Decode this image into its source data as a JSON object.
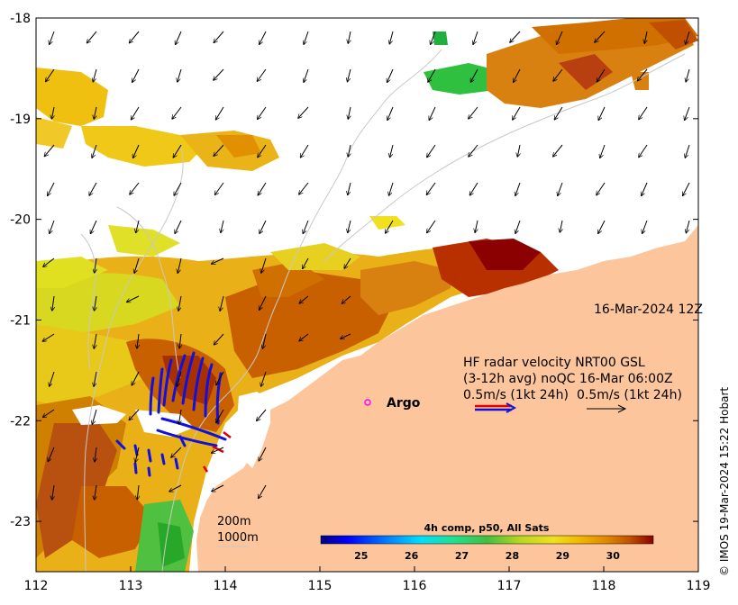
{
  "map": {
    "lon_ticks": [
      "112",
      "113",
      "114",
      "115",
      "116",
      "117",
      "118",
      "119"
    ],
    "lat_ticks": [
      "-18",
      "-19",
      "-20",
      "-21",
      "-22",
      "-23"
    ],
    "lon_range": [
      112,
      119
    ],
    "lat_range": [
      -23.5,
      -18
    ]
  },
  "annotations": {
    "date": "16-Mar-2024 12Z",
    "hf_title": "HF radar velocity  NRT00 GSL",
    "hf_avg": "(3-12h avg) noQC 16-Mar 06:00Z",
    "scale_left": "0.5m/s (1kt 24h)",
    "scale_right": "0.5m/s (1kt 24h)",
    "argo_label": "Argo",
    "iso_200": "200m",
    "iso_1000": "1000m",
    "credit": "© IMOS 19-Mar-2024 15:22 Hobart"
  },
  "colorbar": {
    "title": "4h comp, p50, All Sats",
    "ticks": [
      "25",
      "26",
      "27",
      "28",
      "29",
      "30"
    ],
    "range": [
      24.2,
      30.8
    ],
    "colors": [
      "#00007f",
      "#0000ff",
      "#007fff",
      "#00dfff",
      "#20e090",
      "#40c040",
      "#a0d020",
      "#e8e020",
      "#f0c000",
      "#e89000",
      "#d06000",
      "#a82000",
      "#8b0000"
    ]
  },
  "colors": {
    "land": "#fdc59b",
    "arrow": "#000000",
    "radar": "#1010e0",
    "argo": "#ff00ff"
  }
}
